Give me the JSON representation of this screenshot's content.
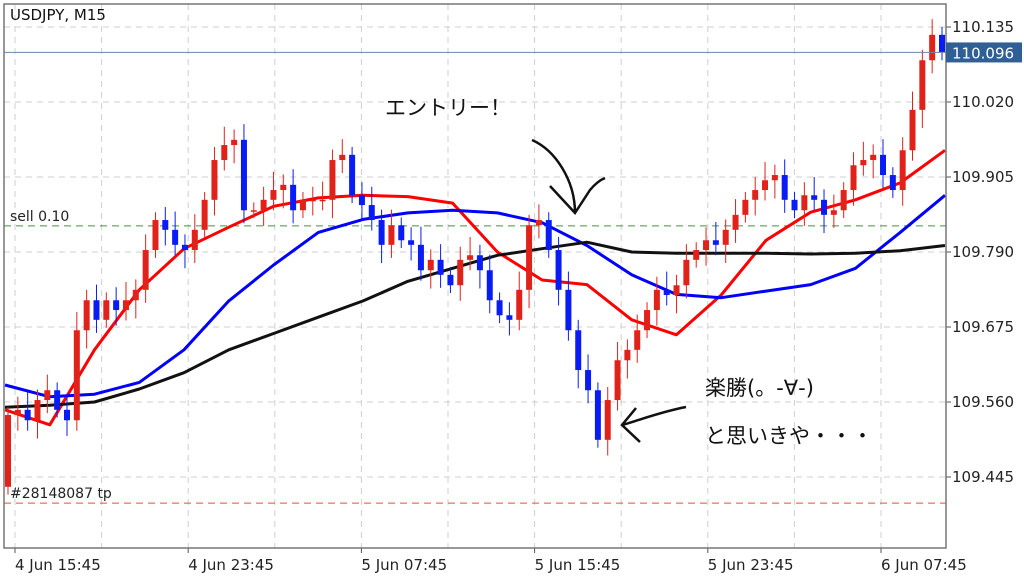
{
  "chart_data": {
    "type": "candlestick",
    "title": "USDJPY, M15",
    "symbol": "USDJPY",
    "timeframe": "M15",
    "ylim": [
      109.37,
      110.17
    ],
    "y_ticks": [
      "110.135",
      "110.020",
      "109.905",
      "109.790",
      "109.675",
      "109.560",
      "109.445"
    ],
    "x_ticks": [
      "4 Jun 15:45",
      "4 Jun 23:45",
      "5 Jun 07:45",
      "5 Jun 15:45",
      "5 Jun 23:45",
      "6 Jun 07:45"
    ],
    "grid": true,
    "current_price": "110.096",
    "first_open": 109.43,
    "closes": [
      109.54,
      109.548,
      109.532,
      109.563,
      109.578,
      109.548,
      109.532,
      109.67,
      109.716,
      109.686,
      109.716,
      109.701,
      109.716,
      109.732,
      109.793,
      109.839,
      109.824,
      109.801,
      109.793,
      109.824,
      109.87,
      109.931,
      109.954,
      109.962,
      109.854,
      109.854,
      109.87,
      109.885,
      109.893,
      109.854,
      109.87,
      109.87,
      109.87,
      109.931,
      109.939,
      109.877,
      109.862,
      109.839,
      109.801,
      109.831,
      109.808,
      109.801,
      109.762,
      109.778,
      109.755,
      109.739,
      109.778,
      109.785,
      109.762,
      109.716,
      109.693,
      109.686,
      109.732,
      109.831,
      109.839,
      109.793,
      109.732,
      109.67,
      109.609,
      109.578,
      109.502,
      109.563,
      109.624,
      109.64,
      109.67,
      109.701,
      109.732,
      109.724,
      109.739,
      109.778,
      109.793,
      109.808,
      109.801,
      109.824,
      109.847,
      109.87,
      109.885,
      109.9,
      109.908,
      109.87,
      109.854,
      109.877,
      109.87,
      109.847,
      109.854,
      109.885,
      109.923,
      109.931,
      109.939,
      109.908,
      109.885,
      109.946,
      110.008,
      110.084,
      110.123,
      110.096
    ],
    "moving_averages": [
      {
        "color": "#ff0000",
        "values": [
          109.548,
          109.525,
          109.64,
          109.732,
          109.795,
          109.828,
          109.86,
          109.873,
          109.877,
          109.875,
          109.865,
          109.79,
          109.747,
          109.74,
          109.686,
          109.663,
          109.724,
          109.808,
          109.851,
          109.87,
          109.896,
          109.946
        ]
      },
      {
        "color": "#0000ff",
        "values": [
          109.586,
          109.568,
          109.572,
          109.59,
          109.64,
          109.715,
          109.77,
          109.82,
          109.84,
          109.85,
          109.854,
          109.85,
          109.835,
          109.8,
          109.755,
          109.725,
          109.72,
          109.73,
          109.74,
          109.765,
          109.82,
          109.877
        ]
      },
      {
        "color": "#111111",
        "values": [
          109.552,
          109.555,
          109.56,
          109.58,
          109.605,
          109.64,
          109.665,
          109.69,
          109.715,
          109.745,
          109.765,
          109.785,
          109.795,
          109.805,
          109.79,
          109.788,
          109.788,
          109.788,
          109.787,
          109.788,
          109.792,
          109.8
        ]
      }
    ],
    "order_lines": [
      {
        "label": "sell 0.10",
        "price": 109.83,
        "color": "#3a9a3a"
      },
      {
        "label": "#28148087 tp",
        "price": 109.405,
        "color": "#e8541e"
      }
    ],
    "annotations": {
      "entry": "エントリー！",
      "easy_win": "楽勝(。-∀-)",
      "or_so_i_thought": "と思いきや・・・"
    }
  },
  "colors": {
    "bull": "#e0221a",
    "bear": "#0a1cf5",
    "price_box": "#2f5f94",
    "grid": "#cfcfcf"
  }
}
